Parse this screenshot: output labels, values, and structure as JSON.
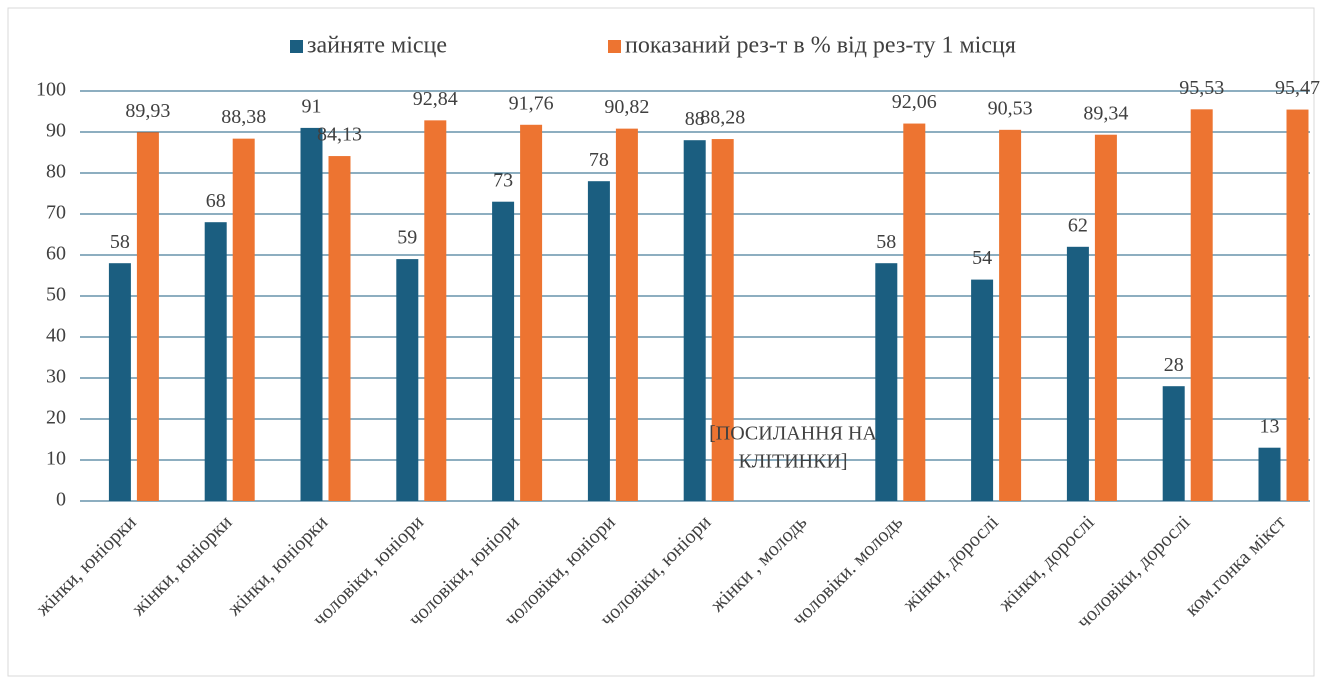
{
  "chart_data": {
    "type": "bar",
    "categories": [
      "жінки, юніорки",
      "жінки, юніорки",
      "жінки, юніорки",
      "чоловіки, юніори",
      "чоловіки, юніори",
      "чоловіки, юніори",
      "чоловіки, юніори",
      "жінки , молодь",
      "чоловіки. молодь",
      "жінки, дорослі",
      "жінки, дорослі",
      "чоловіки, дорослі",
      "ком.гонка мікст"
    ],
    "series": [
      {
        "name": "зайняте місце",
        "color": "#1b5e80",
        "values": [
          58,
          68,
          91,
          59,
          73,
          78,
          88,
          null,
          58,
          54,
          62,
          28,
          13
        ]
      },
      {
        "name": "показаний рез-т в % від рез-ту 1 місця",
        "color": "#ed7431",
        "values": [
          89.93,
          88.38,
          84.13,
          92.84,
          91.76,
          90.82,
          88.28,
          null,
          92.06,
          90.53,
          89.34,
          95.53,
          95.47
        ],
        "value_labels": [
          "89,93",
          "88,38",
          "84,13",
          "92,84",
          "91,76",
          "90,82",
          "88,28",
          null,
          "92,06",
          "90,53",
          "89,34",
          "95,53",
          "95,47"
        ]
      }
    ],
    "annotation": [
      "[ПОСИЛАННЯ НА",
      "КЛІТИНКИ]"
    ],
    "ylim": [
      0,
      100
    ],
    "yticks": [
      0,
      10,
      20,
      30,
      40,
      50,
      60,
      70,
      80,
      90,
      100
    ],
    "grid": true,
    "legend": "top"
  }
}
